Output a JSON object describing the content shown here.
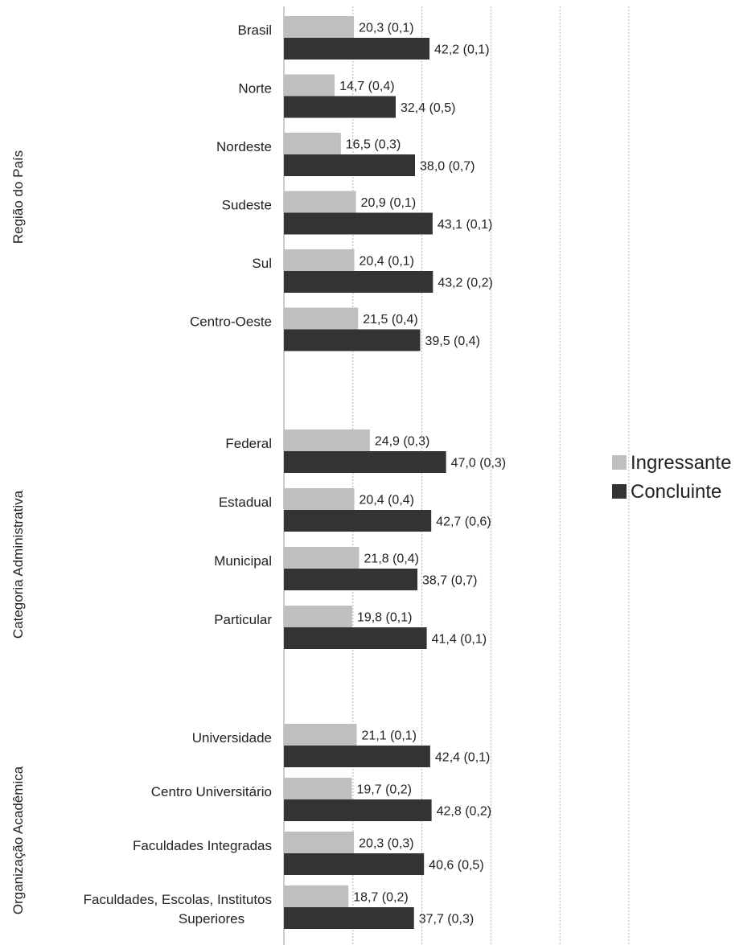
{
  "chart_data": {
    "type": "bar",
    "orientation": "horizontal",
    "xlim": [
      0,
      100
    ],
    "grid": true,
    "legend_position": "right",
    "groups": [
      {
        "label": "Região do País",
        "categories": [
          {
            "label": "Brasil",
            "ingressante": 20.3,
            "ingressante_label": "20,3 (0,1)",
            "concluinte": 42.2,
            "concluinte_label": "42,2 (0,1)"
          },
          {
            "label": "Norte",
            "ingressante": 14.7,
            "ingressante_label": "14,7 (0,4)",
            "concluinte": 32.4,
            "concluinte_label": "32,4 (0,5)"
          },
          {
            "label": "Nordeste",
            "ingressante": 16.5,
            "ingressante_label": "16,5 (0,3)",
            "concluinte": 38.0,
            "concluinte_label": "38,0 (0,7)"
          },
          {
            "label": "Sudeste",
            "ingressante": 20.9,
            "ingressante_label": "20,9 (0,1)",
            "concluinte": 43.1,
            "concluinte_label": "43,1 (0,1)"
          },
          {
            "label": "Sul",
            "ingressante": 20.4,
            "ingressante_label": "20,4 (0,1)",
            "concluinte": 43.2,
            "concluinte_label": "43,2 (0,2)"
          },
          {
            "label": "Centro-Oeste",
            "ingressante": 21.5,
            "ingressante_label": "21,5 (0,4)",
            "concluinte": 39.5,
            "concluinte_label": "39,5 (0,4)"
          }
        ]
      },
      {
        "label": "Categoria Administrativa",
        "categories": [
          {
            "label": "Federal",
            "ingressante": 24.9,
            "ingressante_label": "24,9 (0,3)",
            "concluinte": 47.0,
            "concluinte_label": "47,0 (0,3)"
          },
          {
            "label": "Estadual",
            "ingressante": 20.4,
            "ingressante_label": "20,4 (0,4)",
            "concluinte": 42.7,
            "concluinte_label": "42,7 (0,6)"
          },
          {
            "label": "Municipal",
            "ingressante": 21.8,
            "ingressante_label": "21,8 (0,4)",
            "concluinte": 38.7,
            "concluinte_label": "38,7 (0,7)"
          },
          {
            "label": "Particular",
            "ingressante": 19.8,
            "ingressante_label": "19,8 (0,1)",
            "concluinte": 41.4,
            "concluinte_label": "41,4 (0,1)"
          }
        ]
      },
      {
        "label": "Organização Acadêmica",
        "categories": [
          {
            "label": "Universidade",
            "ingressante": 21.1,
            "ingressante_label": "21,1 (0,1)",
            "concluinte": 42.4,
            "concluinte_label": "42,4 (0,1)"
          },
          {
            "label": "Centro Universitário",
            "ingressante": 19.7,
            "ingressante_label": "19,7 (0,2)",
            "concluinte": 42.8,
            "concluinte_label": "42,8 (0,2)"
          },
          {
            "label": "Faculdades Integradas",
            "ingressante": 20.3,
            "ingressante_label": "20,3 (0,3)",
            "concluinte": 40.6,
            "concluinte_label": "40,6 (0,5)"
          },
          {
            "label": [
              "Faculdades, Escolas, Institutos",
              "Superiores"
            ],
            "ingressante": 18.7,
            "ingressante_label": "18,7 (0,2)",
            "concluinte": 37.7,
            "concluinte_label": "37,7 (0,3)"
          }
        ]
      }
    ],
    "series": [
      {
        "name": "Ingressante",
        "color": "#bfbfbf"
      },
      {
        "name": "Concluinte",
        "color": "#333333"
      }
    ]
  }
}
